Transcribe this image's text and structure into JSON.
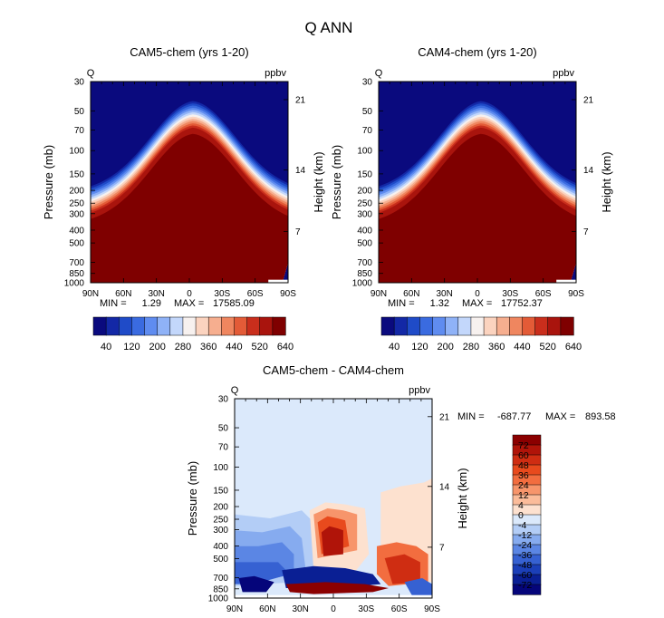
{
  "figure_title": "Q ANN",
  "chart_data": [
    {
      "type": "heatmap",
      "title": "CAM5-chem (yrs 1-20)",
      "variable": "Q",
      "units": "ppbv",
      "ylabel": "Pressure (mb)",
      "y2label": "Height (km)",
      "x_ticks": [
        "90N",
        "60N",
        "30N",
        "0",
        "30S",
        "60S",
        "90S"
      ],
      "y_ticks": [
        "30",
        "50",
        "70",
        "100",
        "150",
        "200",
        "250",
        "300",
        "400",
        "500",
        "700",
        "850",
        "1000"
      ],
      "y2_ticks": [
        "21",
        "14",
        "7"
      ],
      "min_label": "MIN =",
      "min_value": "1.29",
      "max_label": "MAX =",
      "max_value": "17585.09",
      "colorbar_labels": [
        "40",
        "120",
        "200",
        "280",
        "360",
        "440",
        "520",
        "640"
      ],
      "colorbar_colors": [
        "#0a0a7e",
        "#1328a6",
        "#1f4bc8",
        "#3a6be0",
        "#5f8cf0",
        "#8fb2f7",
        "#c3d7fb",
        "#f7f1ef",
        "#fbd3bf",
        "#f6ae8f",
        "#ef865f",
        "#e35b37",
        "#c92e1c",
        "#a9140d",
        "#7f0000"
      ]
    },
    {
      "type": "heatmap",
      "title": "CAM4-chem (yrs 1-20)",
      "variable": "Q",
      "units": "ppbv",
      "ylabel": "Pressure (mb)",
      "y2label": "Height (km)",
      "x_ticks": [
        "90N",
        "60N",
        "30N",
        "0",
        "30S",
        "60S",
        "90S"
      ],
      "y_ticks": [
        "30",
        "50",
        "70",
        "100",
        "150",
        "200",
        "250",
        "300",
        "400",
        "500",
        "700",
        "850",
        "1000"
      ],
      "y2_ticks": [
        "21",
        "14",
        "7"
      ],
      "min_label": "MIN =",
      "min_value": "1.32",
      "max_label": "MAX =",
      "max_value": "17752.37",
      "colorbar_labels": [
        "40",
        "120",
        "200",
        "280",
        "360",
        "440",
        "520",
        "640"
      ],
      "colorbar_colors": [
        "#0a0a7e",
        "#1328a6",
        "#1f4bc8",
        "#3a6be0",
        "#5f8cf0",
        "#8fb2f7",
        "#c3d7fb",
        "#f7f1ef",
        "#fbd3bf",
        "#f6ae8f",
        "#ef865f",
        "#e35b37",
        "#c92e1c",
        "#a9140d",
        "#7f0000"
      ]
    },
    {
      "type": "heatmap",
      "title": "CAM5-chem - CAM4-chem",
      "variable": "Q",
      "units": "ppbv",
      "ylabel": "Pressure (mb)",
      "y2label": "Height (km)",
      "x_ticks": [
        "90N",
        "60N",
        "30N",
        "0",
        "30S",
        "60S",
        "90S"
      ],
      "y_ticks": [
        "30",
        "50",
        "70",
        "100",
        "150",
        "200",
        "250",
        "300",
        "400",
        "500",
        "700",
        "850",
        "1000"
      ],
      "y2_ticks": [
        "21",
        "14",
        "7"
      ],
      "min_label": "MIN =",
      "min_value": "-687.77",
      "max_label": "MAX =",
      "max_value": "893.58",
      "colorbar_labels": [
        "72",
        "60",
        "48",
        "36",
        "24",
        "12",
        "4",
        "0",
        "-4",
        "-12",
        "-24",
        "-36",
        "-48",
        "-60",
        "-72"
      ],
      "colorbar_colors": [
        "#8b0000",
        "#b01409",
        "#cf2d12",
        "#e84a1d",
        "#f26d3f",
        "#f7956b",
        "#fbbc9a",
        "#fde1cf",
        "#dbe9fb",
        "#b3cdf6",
        "#86abef",
        "#5b86e4",
        "#3661d2",
        "#1b3fb8",
        "#0a1f94",
        "#05057a"
      ]
    }
  ]
}
